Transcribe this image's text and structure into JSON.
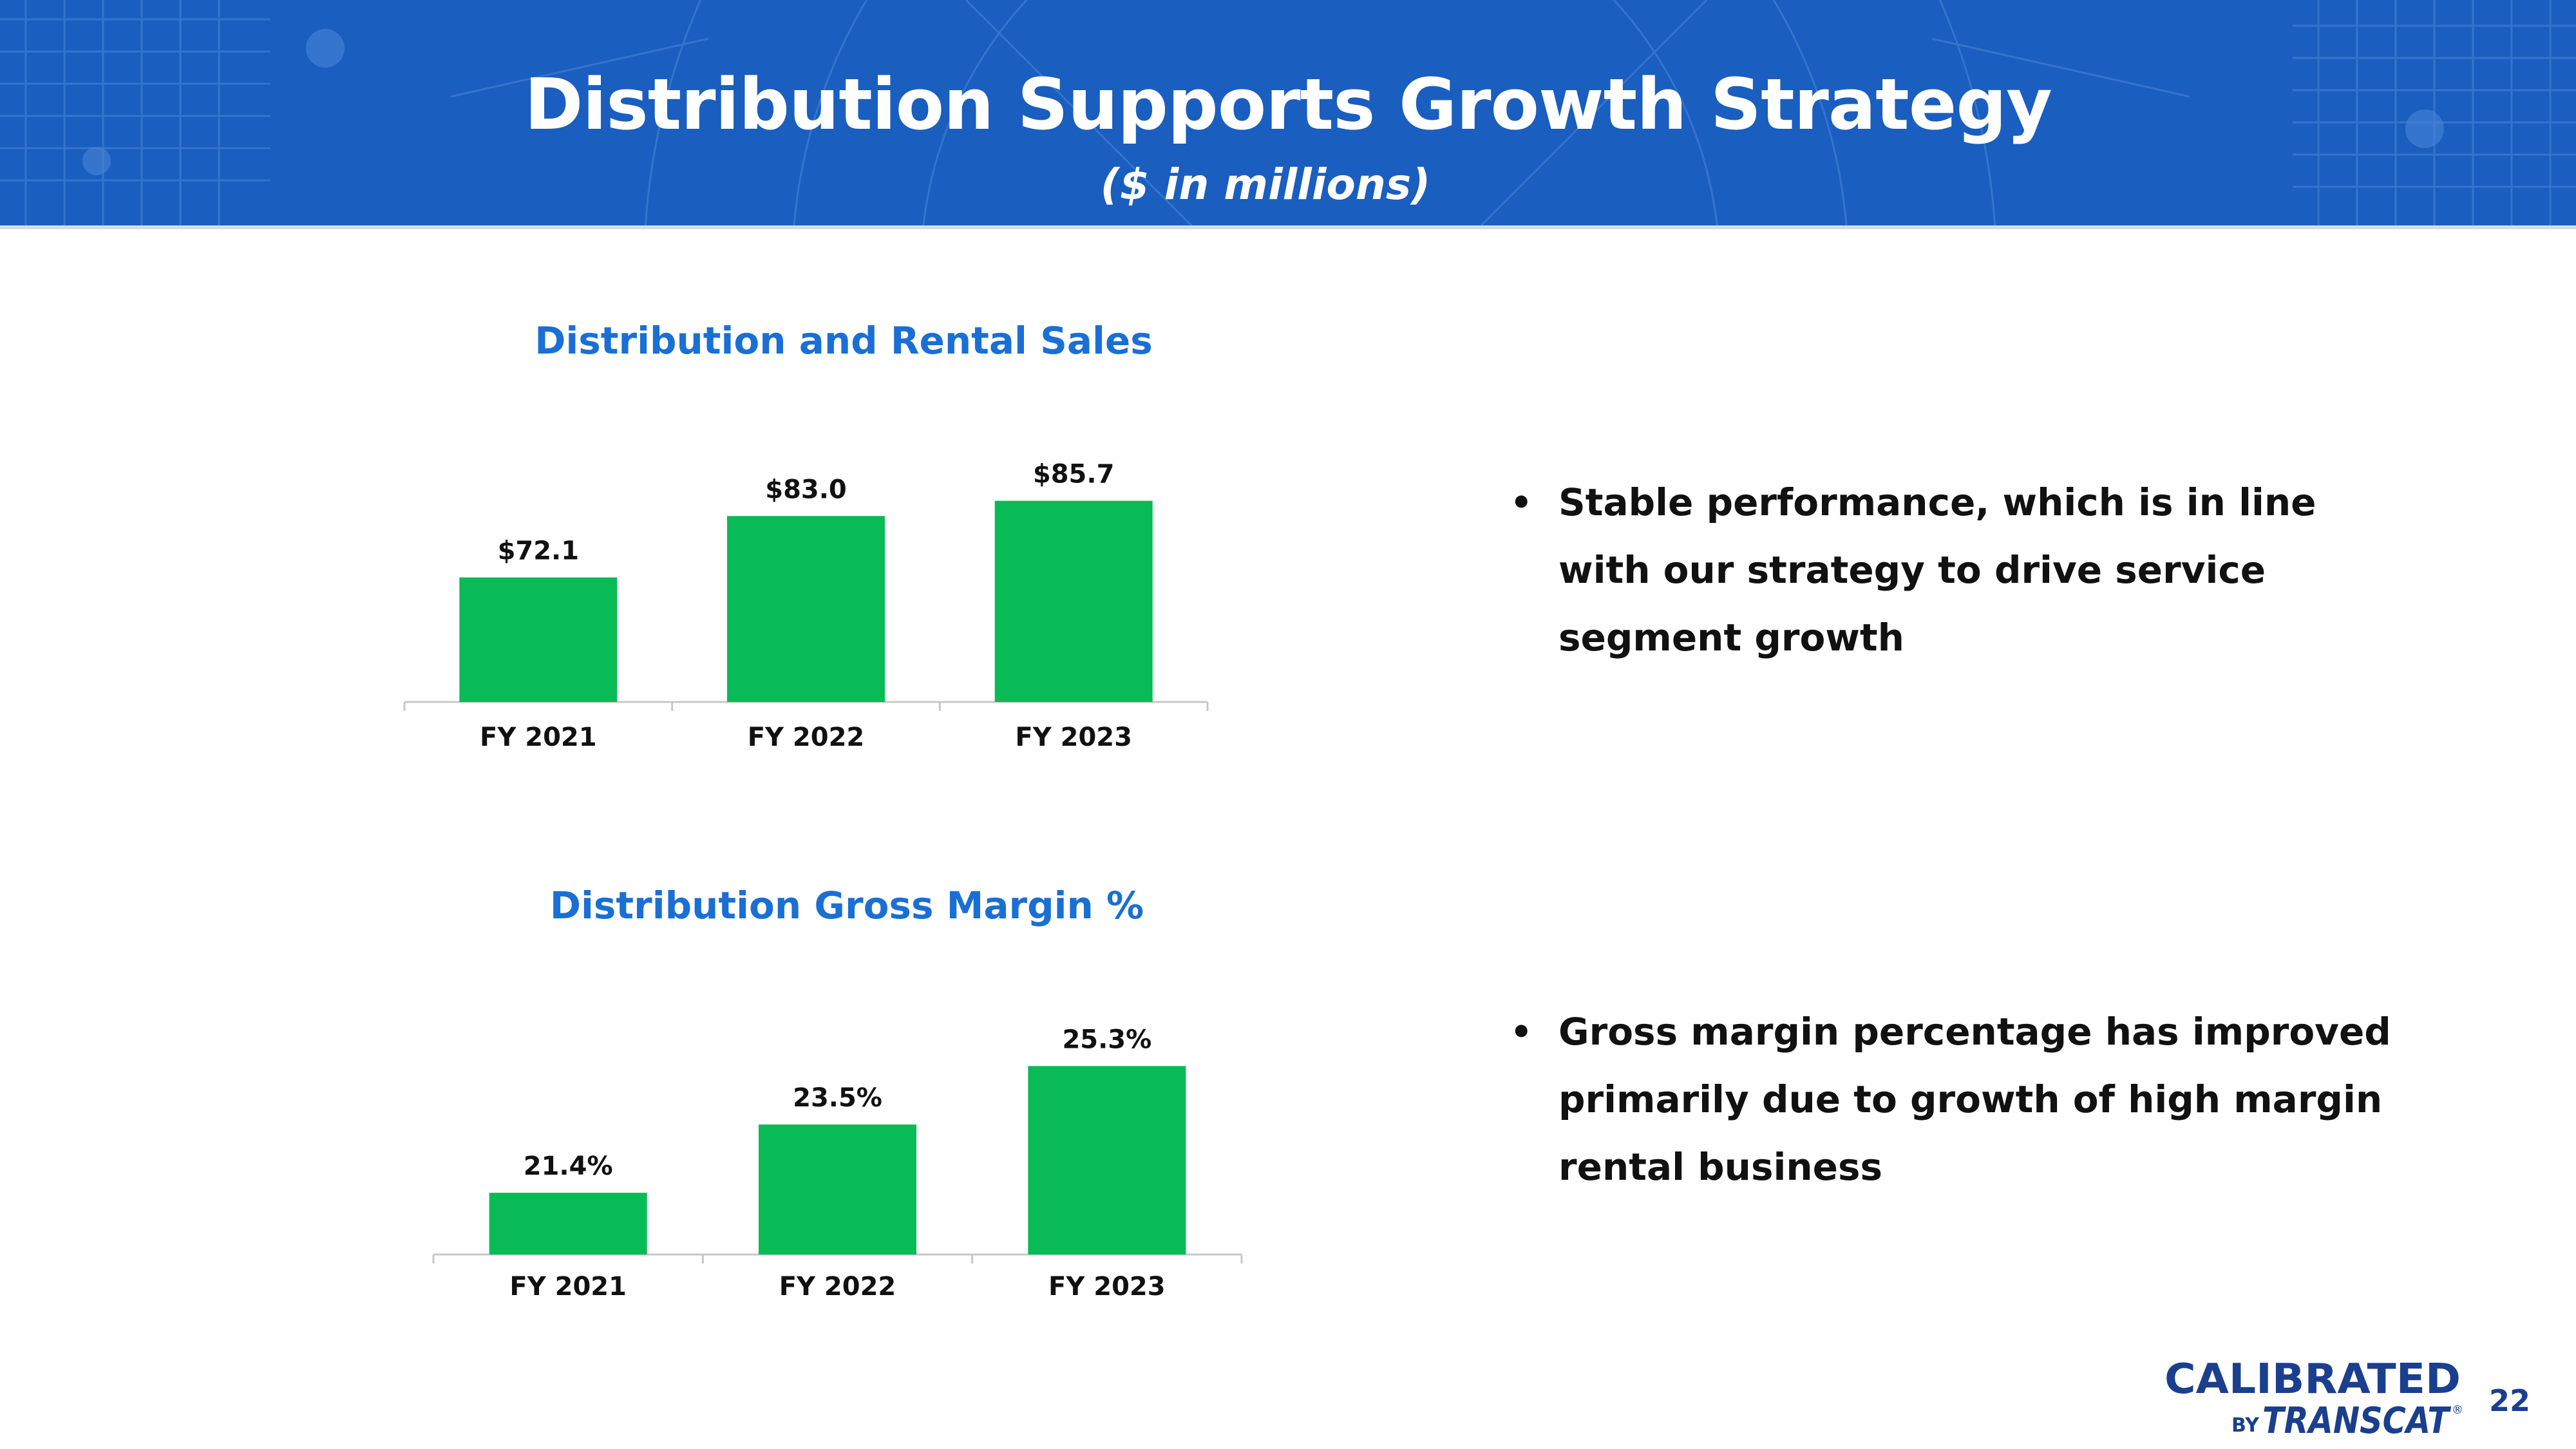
{
  "header": {
    "title": "Distribution Supports Growth Strategy",
    "subtitle": "($ in millions)"
  },
  "colors": {
    "header_bg": "#1a5ebf",
    "bar": "#08bb57",
    "chart_title": "#1a6fd4",
    "logo": "#1a3f8e"
  },
  "chart_data": [
    {
      "type": "bar",
      "title": "Distribution and Rental Sales",
      "categories": [
        "FY 2021",
        "FY 2022",
        "FY 2023"
      ],
      "values": [
        72.1,
        83.0,
        85.7
      ],
      "data_labels": [
        "$72.1",
        "$83.0",
        "$85.7"
      ],
      "xlabel": "",
      "ylabel": "",
      "ylim": [
        50,
        90
      ],
      "grid": false,
      "legend": "none"
    },
    {
      "type": "bar",
      "title": "Distribution Gross Margin %",
      "categories": [
        "FY 2021",
        "FY 2022",
        "FY 2023"
      ],
      "values": [
        21.4,
        23.5,
        25.3
      ],
      "data_labels": [
        "21.4%",
        "23.5%",
        "25.3%"
      ],
      "xlabel": "",
      "ylabel": "",
      "ylim": [
        19.5,
        26
      ],
      "grid": false,
      "legend": "none"
    }
  ],
  "bullets": [
    {
      "marker": "•",
      "text": "Stable performance, which is in line with our strategy to drive service segment growth"
    },
    {
      "marker": "•",
      "text": "Gross margin percentage has improved primarily due to growth of high margin rental business"
    }
  ],
  "logo": {
    "top_text": "CALIBRATED",
    "by_text": "BY",
    "brand_text": "TRANSCAT",
    "registered_mark": "®"
  },
  "page_number": "22"
}
